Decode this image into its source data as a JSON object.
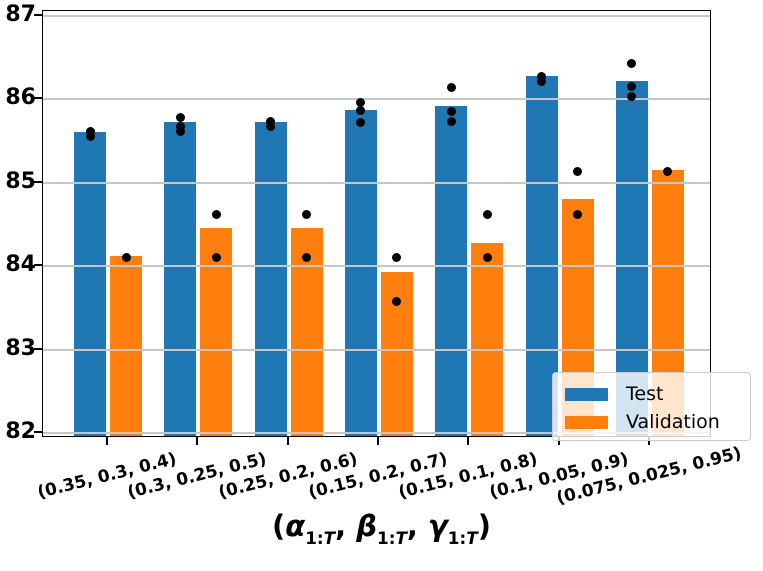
{
  "chart_data": {
    "type": "bar",
    "title": "",
    "categories": [
      "(0.35, 0.3, 0.4)",
      "(0.3, 0.25, 0.5)",
      "(0.25, 0.2, 0.6)",
      "(0.15, 0.2, 0.7)",
      "(0.15, 0.1, 0.8)",
      "(0.1, 0.05, 0.9)",
      "(0.075, 0.025, 0.95)"
    ],
    "series": [
      {
        "name": "Test",
        "color": "#1f77b4",
        "values": [
          85.58,
          85.7,
          85.71,
          85.85,
          85.9,
          86.26,
          86.2
        ]
      },
      {
        "name": "Validation",
        "color": "#ff7f0e",
        "values": [
          84.1,
          84.43,
          84.43,
          83.91,
          84.26,
          84.78,
          85.13
        ]
      }
    ],
    "scatter_overlay": {
      "color": "#000000",
      "series": [
        {
          "name": "Test",
          "points_per_category": [
            [
              85.61,
              85.55
            ],
            [
              85.78,
              85.67,
              85.62
            ],
            [
              85.74,
              85.68
            ],
            [
              85.96,
              85.87,
              85.72
            ],
            [
              86.14,
              85.85,
              85.74
            ],
            [
              86.28,
              86.21
            ],
            [
              86.43,
              86.16,
              86.04
            ]
          ]
        },
        {
          "name": "Validation",
          "points_per_category": [
            [
              84.11
            ],
            [
              84.62,
              84.1
            ],
            [
              84.62,
              84.1
            ],
            [
              84.1,
              83.58
            ],
            [
              84.62,
              84.1
            ],
            [
              85.13,
              84.62
            ],
            [
              85.14
            ]
          ]
        }
      ]
    },
    "xlabel_plain": "(α_{1:T}, β_{1:T}, γ_{1:T})",
    "xlabel_segments": [
      {
        "t": "("
      },
      {
        "t": "α",
        "em": true
      },
      {
        "s": "1:T"
      },
      {
        "t": ", "
      },
      {
        "t": "β",
        "em": true
      },
      {
        "s": "1:T"
      },
      {
        "t": ", "
      },
      {
        "t": "γ",
        "em": true
      },
      {
        "s": "1:T"
      },
      {
        "t": ")"
      }
    ],
    "ylabel": "",
    "ylim": [
      81.94,
      87.06
    ],
    "yticks": [
      82,
      83,
      84,
      85,
      86,
      87
    ],
    "grid": true,
    "grid_color": "#c6c6c6",
    "legend": {
      "position": "lower right",
      "items": [
        {
          "label": "Test",
          "color": "#1f77b4"
        },
        {
          "label": "Validation",
          "color": "#ff7f0e"
        }
      ]
    }
  }
}
